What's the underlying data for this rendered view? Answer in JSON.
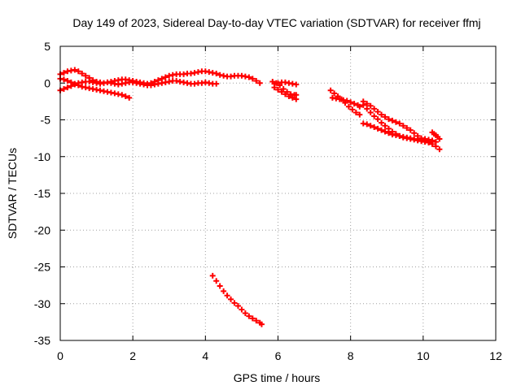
{
  "chart_data": {
    "type": "scatter",
    "title": "Day 149 of 2023, Sidereal Day-to-day VTEC variation (SDTVAR) for receiver ffmj",
    "xlabel": "GPS time / hours",
    "ylabel": "SDTVAR / TECUs",
    "xlim": [
      0,
      12
    ],
    "ylim": [
      -35,
      5
    ],
    "xticks": [
      0,
      2,
      4,
      6,
      8,
      10,
      12
    ],
    "yticks": [
      5,
      0,
      -5,
      -10,
      -15,
      -20,
      -25,
      -30,
      -35
    ],
    "grid": true,
    "marker": "plus",
    "color": "#ff0000",
    "series": [
      {
        "points": [
          [
            0.0,
            1.2
          ],
          [
            0.1,
            1.4
          ],
          [
            0.2,
            1.6
          ],
          [
            0.3,
            1.7
          ],
          [
            0.4,
            1.8
          ],
          [
            0.5,
            1.6
          ],
          [
            0.6,
            1.3
          ],
          [
            0.7,
            1.0
          ],
          [
            0.8,
            0.7
          ],
          [
            0.9,
            0.4
          ],
          [
            1.0,
            0.2
          ],
          [
            1.1,
            0.1
          ],
          [
            1.2,
            0.0
          ],
          [
            1.3,
            0.1
          ],
          [
            1.4,
            0.2
          ],
          [
            1.5,
            0.3
          ],
          [
            1.6,
            0.4
          ],
          [
            1.7,
            0.5
          ],
          [
            1.8,
            0.5
          ],
          [
            1.9,
            0.4
          ],
          [
            2.0,
            0.3
          ],
          [
            2.1,
            0.2
          ],
          [
            2.2,
            0.1
          ],
          [
            2.3,
            0.0
          ],
          [
            2.4,
            -0.1
          ],
          [
            2.5,
            0.0
          ],
          [
            2.6,
            0.2
          ],
          [
            2.7,
            0.4
          ],
          [
            2.8,
            0.6
          ],
          [
            2.9,
            0.8
          ],
          [
            3.0,
            1.0
          ],
          [
            3.1,
            1.1
          ],
          [
            3.2,
            1.2
          ],
          [
            3.3,
            1.2
          ],
          [
            3.4,
            1.2
          ],
          [
            3.5,
            1.3
          ],
          [
            3.6,
            1.3
          ],
          [
            3.7,
            1.4
          ],
          [
            3.8,
            1.5
          ],
          [
            3.9,
            1.6
          ],
          [
            4.0,
            1.6
          ],
          [
            4.1,
            1.5
          ],
          [
            4.2,
            1.4
          ],
          [
            4.3,
            1.3
          ],
          [
            4.4,
            1.1
          ],
          [
            4.5,
            1.0
          ],
          [
            4.6,
            0.9
          ],
          [
            4.7,
            0.9
          ],
          [
            4.8,
            1.0
          ],
          [
            4.9,
            1.0
          ],
          [
            5.0,
            1.0
          ],
          [
            5.1,
            0.9
          ],
          [
            5.2,
            0.8
          ],
          [
            5.3,
            0.6
          ],
          [
            5.4,
            0.3
          ],
          [
            5.5,
            0.0
          ]
        ]
      },
      {
        "points": [
          [
            0.0,
            0.6
          ],
          [
            0.1,
            0.5
          ],
          [
            0.2,
            0.3
          ],
          [
            0.3,
            0.1
          ],
          [
            0.4,
            -0.1
          ],
          [
            0.5,
            -0.3
          ],
          [
            0.6,
            -0.5
          ],
          [
            0.7,
            -0.6
          ],
          [
            0.8,
            -0.7
          ],
          [
            0.9,
            -0.8
          ],
          [
            1.0,
            -0.9
          ],
          [
            1.1,
            -1.0
          ],
          [
            1.2,
            -1.1
          ],
          [
            1.3,
            -1.2
          ],
          [
            1.4,
            -1.3
          ],
          [
            1.5,
            -1.4
          ],
          [
            1.6,
            -1.5
          ],
          [
            1.7,
            -1.6
          ],
          [
            1.8,
            -1.8
          ],
          [
            1.9,
            -2.0
          ]
        ]
      },
      {
        "points": [
          [
            0.0,
            -1.0
          ],
          [
            0.1,
            -0.8
          ],
          [
            0.2,
            -0.6
          ],
          [
            0.3,
            -0.4
          ],
          [
            0.4,
            -0.2
          ],
          [
            0.5,
            0.0
          ],
          [
            0.6,
            0.1
          ],
          [
            0.7,
            0.2
          ],
          [
            0.8,
            0.2
          ],
          [
            0.9,
            0.1
          ],
          [
            1.0,
            0.0
          ],
          [
            1.1,
            -0.1
          ],
          [
            1.2,
            0.0
          ],
          [
            1.3,
            0.1
          ],
          [
            1.4,
            0.0
          ],
          [
            1.5,
            -0.1
          ],
          [
            1.6,
            -0.2
          ],
          [
            1.7,
            -0.1
          ],
          [
            1.8,
            0.0
          ],
          [
            1.9,
            0.1
          ],
          [
            2.0,
            0.1
          ],
          [
            2.1,
            0.0
          ],
          [
            2.2,
            -0.1
          ],
          [
            2.3,
            -0.2
          ],
          [
            2.4,
            -0.3
          ],
          [
            2.5,
            -0.3
          ],
          [
            2.6,
            -0.2
          ],
          [
            2.7,
            -0.1
          ],
          [
            2.8,
            0.0
          ],
          [
            2.9,
            0.1
          ],
          [
            3.0,
            0.2
          ],
          [
            3.1,
            0.3
          ],
          [
            3.2,
            0.3
          ],
          [
            3.3,
            0.2
          ],
          [
            3.4,
            0.1
          ],
          [
            3.5,
            0.0
          ],
          [
            3.6,
            -0.1
          ],
          [
            3.7,
            -0.1
          ],
          [
            3.8,
            0.0
          ],
          [
            3.9,
            0.0
          ],
          [
            4.0,
            0.1
          ],
          [
            4.1,
            0.0
          ],
          [
            4.2,
            -0.1
          ],
          [
            4.3,
            -0.1
          ]
        ]
      },
      {
        "points": [
          [
            5.85,
            0.2
          ],
          [
            5.95,
            0.0
          ],
          [
            6.05,
            -0.3
          ],
          [
            6.15,
            -0.8
          ],
          [
            6.25,
            -1.2
          ],
          [
            6.35,
            -1.5
          ],
          [
            6.45,
            -1.6
          ],
          [
            6.5,
            -1.6
          ]
        ]
      },
      {
        "points": [
          [
            5.9,
            -0.1
          ],
          [
            6.0,
            0.0
          ],
          [
            6.1,
            0.1
          ],
          [
            6.2,
            0.1
          ],
          [
            6.3,
            0.0
          ],
          [
            6.4,
            -0.1
          ],
          [
            6.5,
            -0.2
          ]
        ]
      },
      {
        "points": [
          [
            5.9,
            -0.6
          ],
          [
            6.0,
            -0.9
          ],
          [
            6.1,
            -1.2
          ],
          [
            6.2,
            -1.5
          ],
          [
            6.3,
            -1.8
          ],
          [
            6.4,
            -2.0
          ],
          [
            6.5,
            -2.2
          ]
        ]
      },
      {
        "points": [
          [
            7.45,
            -1.0
          ],
          [
            7.55,
            -1.4
          ],
          [
            7.65,
            -1.8
          ],
          [
            7.75,
            -2.2
          ],
          [
            7.85,
            -2.7
          ],
          [
            7.95,
            -3.2
          ],
          [
            8.05,
            -3.6
          ],
          [
            8.15,
            -4.0
          ],
          [
            8.25,
            -4.3
          ]
        ]
      },
      {
        "points": [
          [
            7.5,
            -2.0
          ],
          [
            7.6,
            -2.1
          ],
          [
            7.7,
            -2.2
          ],
          [
            7.8,
            -2.3
          ],
          [
            7.9,
            -2.4
          ],
          [
            8.0,
            -2.6
          ],
          [
            8.1,
            -2.8
          ],
          [
            8.2,
            -3.0
          ],
          [
            8.25,
            -3.2
          ]
        ]
      },
      {
        "points": [
          [
            8.35,
            -3.0
          ],
          [
            8.45,
            -3.5
          ],
          [
            8.55,
            -4.0
          ],
          [
            8.65,
            -4.5
          ],
          [
            8.75,
            -4.9
          ],
          [
            8.85,
            -5.4
          ],
          [
            8.95,
            -5.8
          ],
          [
            9.05,
            -6.2
          ],
          [
            9.15,
            -6.6
          ],
          [
            9.25,
            -6.9
          ],
          [
            9.35,
            -7.2
          ],
          [
            9.45,
            -7.4
          ],
          [
            9.55,
            -7.5
          ],
          [
            9.65,
            -7.6
          ],
          [
            9.75,
            -7.7
          ],
          [
            9.85,
            -7.8
          ],
          [
            9.95,
            -7.9
          ],
          [
            10.05,
            -8.0
          ],
          [
            10.15,
            -8.1
          ],
          [
            10.25,
            -8.3
          ],
          [
            10.35,
            -8.6
          ],
          [
            10.45,
            -9.0
          ]
        ]
      },
      {
        "points": [
          [
            8.35,
            -2.5
          ],
          [
            8.45,
            -2.8
          ],
          [
            8.55,
            -3.1
          ],
          [
            8.65,
            -3.5
          ],
          [
            8.75,
            -3.9
          ],
          [
            8.85,
            -4.3
          ],
          [
            8.95,
            -4.6
          ],
          [
            9.05,
            -4.9
          ],
          [
            9.15,
            -5.1
          ],
          [
            9.25,
            -5.3
          ],
          [
            9.35,
            -5.5
          ],
          [
            9.45,
            -5.8
          ],
          [
            9.55,
            -6.1
          ],
          [
            9.65,
            -6.4
          ],
          [
            9.75,
            -6.8
          ],
          [
            9.85,
            -7.2
          ],
          [
            9.95,
            -7.5
          ],
          [
            10.05,
            -7.6
          ],
          [
            10.15,
            -7.7
          ],
          [
            10.25,
            -7.8
          ],
          [
            10.35,
            -8.0
          ]
        ]
      },
      {
        "points": [
          [
            8.35,
            -5.5
          ],
          [
            8.45,
            -5.6
          ],
          [
            8.55,
            -5.8
          ],
          [
            8.65,
            -6.0
          ],
          [
            8.75,
            -6.2
          ],
          [
            8.85,
            -6.4
          ],
          [
            8.95,
            -6.6
          ],
          [
            9.05,
            -6.8
          ],
          [
            9.15,
            -7.0
          ],
          [
            9.25,
            -7.1
          ],
          [
            9.35,
            -7.2
          ],
          [
            9.45,
            -7.3
          ],
          [
            9.55,
            -7.4
          ],
          [
            9.65,
            -7.5
          ],
          [
            9.75,
            -7.6
          ],
          [
            9.85,
            -7.7
          ],
          [
            9.95,
            -7.8
          ],
          [
            10.05,
            -7.8
          ],
          [
            10.15,
            -7.9
          ]
        ]
      },
      {
        "points": [
          [
            10.25,
            -6.7
          ],
          [
            10.3,
            -6.9
          ],
          [
            10.35,
            -7.1
          ],
          [
            10.4,
            -7.3
          ],
          [
            10.45,
            -7.6
          ]
        ]
      },
      {
        "points": [
          [
            4.2,
            -26.2
          ],
          [
            4.3,
            -26.9
          ],
          [
            4.4,
            -27.6
          ],
          [
            4.5,
            -28.3
          ],
          [
            4.6,
            -28.9
          ],
          [
            4.7,
            -29.4
          ],
          [
            4.8,
            -29.9
          ],
          [
            4.9,
            -30.3
          ],
          [
            5.0,
            -30.8
          ],
          [
            5.1,
            -31.3
          ],
          [
            5.2,
            -31.7
          ],
          [
            5.3,
            -32.0
          ],
          [
            5.4,
            -32.3
          ],
          [
            5.5,
            -32.6
          ],
          [
            5.55,
            -32.8
          ]
        ]
      }
    ]
  }
}
